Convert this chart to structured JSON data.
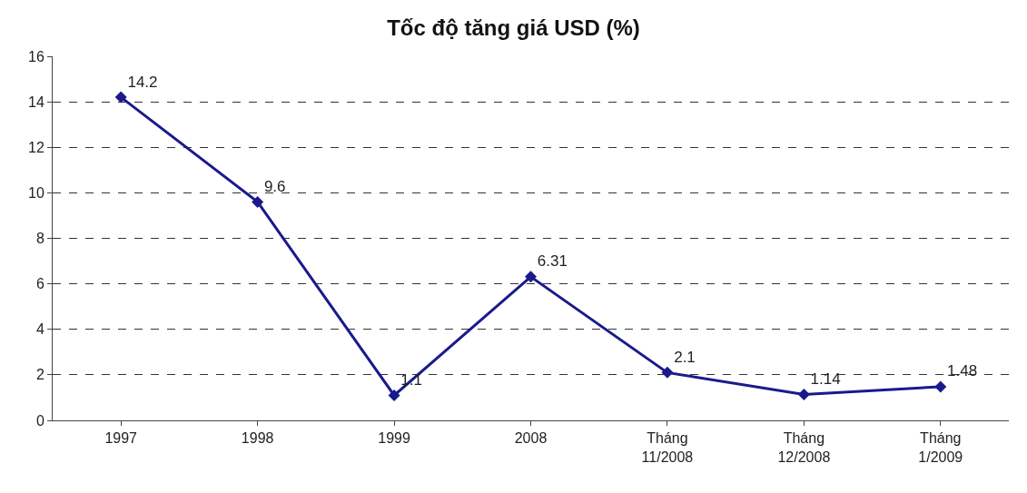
{
  "chart_data": {
    "type": "line",
    "title": "Tốc độ tăng giá USD (%)",
    "categories": [
      "1997",
      "1998",
      "1999",
      "2008",
      "Tháng\n11/2008",
      "Tháng\n12/2008",
      "Tháng\n1/2009"
    ],
    "series": [
      {
        "color": "#1a1a8c",
        "values": [
          14.2,
          9.6,
          1.1,
          6.31,
          2.1,
          1.14,
          1.48
        ]
      }
    ],
    "ylim": [
      0,
      16
    ],
    "yticks": [
      0,
      2,
      4,
      6,
      8,
      10,
      12,
      14,
      16
    ],
    "grid": "y",
    "marker": "diamond",
    "line_style": "solid",
    "data_labels": true
  }
}
